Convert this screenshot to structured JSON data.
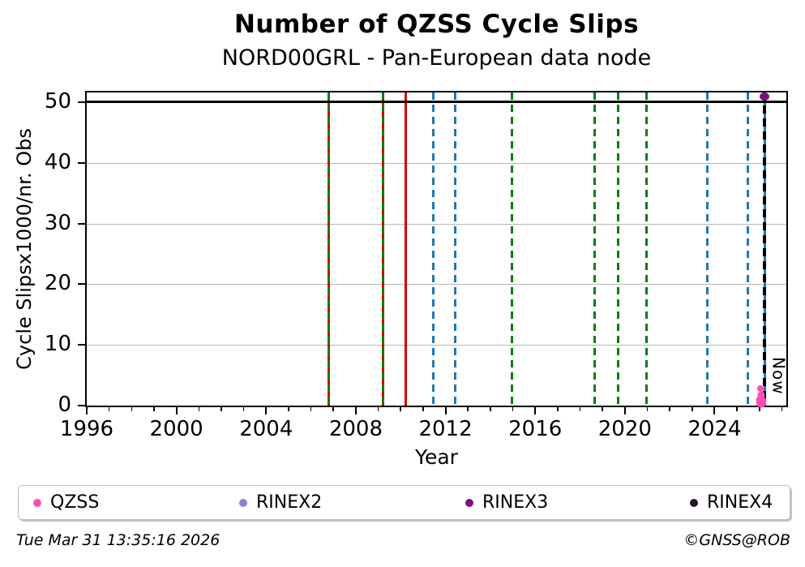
{
  "title": "Number of QZSS Cycle Slips",
  "subtitle": "NORD00GRL - Pan-European data node",
  "footer": {
    "timestamp": "Tue Mar 31 13:35:16 2026",
    "credit": "©GNSS@ROB"
  },
  "legend": {
    "items": [
      {
        "label": "QZSS",
        "color": "#ff4db2"
      },
      {
        "label": "RINEX2",
        "color": "#8888cc"
      },
      {
        "label": "RINEX3",
        "color": "#7d107d"
      },
      {
        "label": "RINEX4",
        "color": "#261026"
      }
    ]
  },
  "chart_data": {
    "type": "scatter",
    "title": "Number of QZSS Cycle Slips",
    "subtitle": "NORD00GRL - Pan-European data node",
    "xlabel": "Year",
    "ylabel": "Cycle Slipsx1000/nr. Obs",
    "xlim": [
      1996,
      2027.2
    ],
    "ylim": [
      0,
      51.6
    ],
    "xticks": [
      1996,
      2000,
      2004,
      2008,
      2012,
      2016,
      2020,
      2024
    ],
    "yticks": [
      0,
      10,
      20,
      30,
      40,
      50
    ],
    "x_minor_step": 1,
    "grid": "horizontal-only",
    "grid_color": "#b8b8b8",
    "threshold_line": {
      "y": 50,
      "color": "#000000"
    },
    "now_marker": {
      "x": 2026.24,
      "label": "Now"
    },
    "event_lines": [
      {
        "x": 2006.78,
        "style": "green-dashed-over-red"
      },
      {
        "x": 2009.23,
        "style": "green-dashed-over-red"
      },
      {
        "x": 2010.22,
        "style": "red-solid"
      },
      {
        "x": 2011.45,
        "style": "blue-dashed"
      },
      {
        "x": 2012.43,
        "style": "blue-dashed"
      },
      {
        "x": 2014.98,
        "style": "green-dashed"
      },
      {
        "x": 2018.65,
        "style": "green-dashed"
      },
      {
        "x": 2019.69,
        "style": "green-dashed"
      },
      {
        "x": 2020.98,
        "style": "green-dashed"
      },
      {
        "x": 2023.68,
        "style": "blue-dashed"
      },
      {
        "x": 2025.49,
        "style": "blue-dashed"
      },
      {
        "x": 2026.24,
        "style": "blue-solid-under-now"
      }
    ],
    "series": [
      {
        "name": "QZSS",
        "color": "#ff4db2",
        "points": [
          [
            2026.05,
            2.8,
            8,
            8
          ],
          [
            2026.07,
            1.7,
            9,
            9
          ],
          [
            2026.0,
            0.95,
            9,
            9
          ],
          [
            2026.14,
            0.8,
            9,
            9
          ],
          [
            2026.07,
            0.35,
            12,
            11
          ]
        ]
      },
      {
        "name": "RINEX2",
        "color": "#8888cc",
        "points": []
      },
      {
        "name": "RINEX3",
        "color": "#7d107d",
        "points": [
          [
            2026.22,
            50.9,
            12,
            10
          ]
        ]
      },
      {
        "name": "RINEX4",
        "color": "#261026",
        "points": []
      }
    ],
    "colors": {
      "receiver_change_line": "#008000",
      "antenna_change_line": "#d40000",
      "firmware_change_line": "#1f77b4",
      "now_line": "#000000"
    }
  }
}
